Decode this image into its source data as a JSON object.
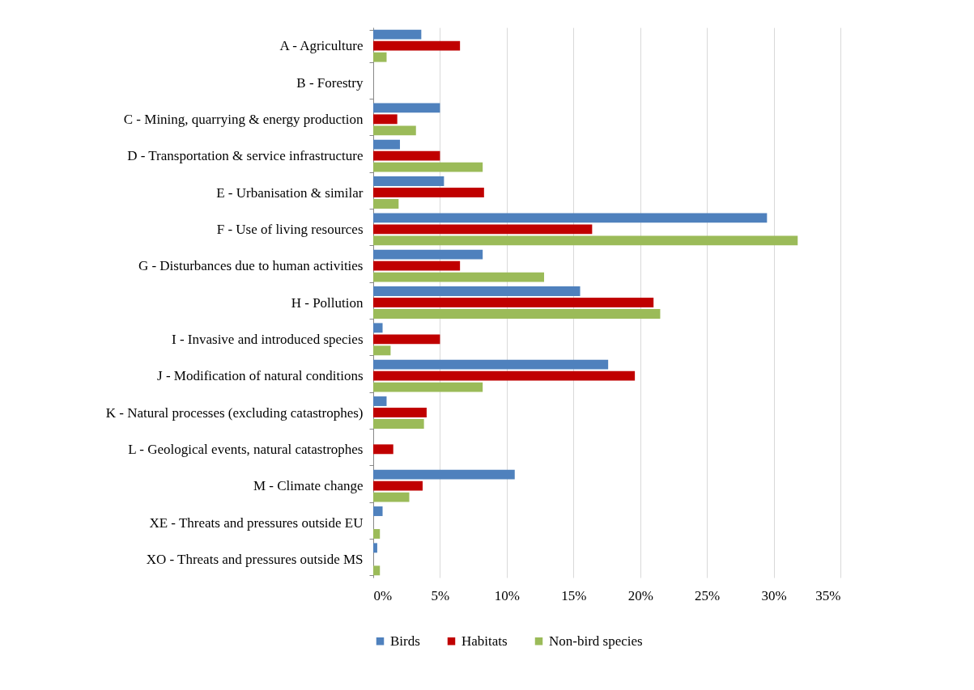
{
  "chart_data": {
    "type": "bar",
    "orientation": "horizontal",
    "categories": [
      "A - Agriculture",
      "B - Forestry",
      "C - Mining, quarrying & energy production",
      "D - Transportation & service infrastructure",
      "E - Urbanisation & similar",
      "F - Use of living resources",
      "G - Disturbances due to human activities",
      "H - Pollution",
      "I - Invasive and introduced species",
      "J - Modification of natural conditions",
      "K - Natural processes (excluding catastrophes)",
      "L - Geological events, natural catastrophes",
      "M - Climate change",
      "XE - Threats and pressures outside EU",
      "XO - Threats and pressures outside MS"
    ],
    "series": [
      {
        "name": "Birds",
        "color": "#4f81bd",
        "values": [
          3.6,
          null,
          5.0,
          2.0,
          5.3,
          29.5,
          8.2,
          15.5,
          0.7,
          17.6,
          1.0,
          null,
          10.6,
          0.7,
          0.3
        ]
      },
      {
        "name": "Habitats",
        "color": "#c00000",
        "values": [
          6.5,
          null,
          1.8,
          5.0,
          8.3,
          16.4,
          6.5,
          21.0,
          5.0,
          19.6,
          4.0,
          1.5,
          3.7,
          null,
          null
        ]
      },
      {
        "name": "Non-bird species",
        "color": "#9bbb59",
        "values": [
          1.0,
          null,
          3.2,
          8.2,
          1.9,
          31.8,
          12.8,
          21.5,
          1.3,
          8.2,
          3.8,
          null,
          2.7,
          0.5,
          0.5
        ]
      }
    ],
    "xlim": [
      0,
      35
    ],
    "xticks": [
      {
        "value": 0,
        "label": "0%"
      },
      {
        "value": 5,
        "label": "5%"
      },
      {
        "value": 10,
        "label": "10%"
      },
      {
        "value": 15,
        "label": "15%"
      },
      {
        "value": 20,
        "label": "20%"
      },
      {
        "value": 25,
        "label": "25%"
      },
      {
        "value": 30,
        "label": "30%"
      },
      {
        "value": 35,
        "label": "35%"
      }
    ],
    "grid": "x",
    "legend": "bottom"
  }
}
